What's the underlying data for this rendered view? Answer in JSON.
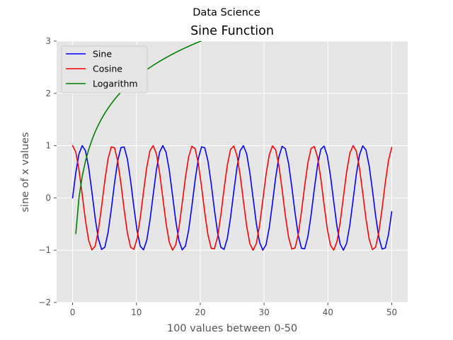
{
  "figure": {
    "suptitle": "Data Science"
  },
  "chart_data": {
    "type": "line",
    "title": "Sine Function",
    "xlabel": "100 values between 0-50",
    "ylabel": "sine of x values",
    "xlim": [
      -2.5,
      52.5
    ],
    "ylim": [
      -2,
      3
    ],
    "xticks": [
      0,
      10,
      20,
      30,
      40,
      50
    ],
    "yticks": [
      -2,
      -1,
      0,
      1,
      2,
      3
    ],
    "grid": true,
    "legend_position": "upper-left",
    "x": {
      "start": 0,
      "stop": 50,
      "count": 100
    },
    "series": [
      {
        "name": "Sine",
        "function": "sin(x)",
        "color": "#0000ff",
        "x_from": 0
      },
      {
        "name": "Cosine",
        "function": "cos(x)",
        "color": "#ff0000",
        "x_from": 0
      },
      {
        "name": "Logarithm",
        "function": "ln(x)",
        "color": "#008000",
        "x_from": 0.505
      }
    ]
  }
}
